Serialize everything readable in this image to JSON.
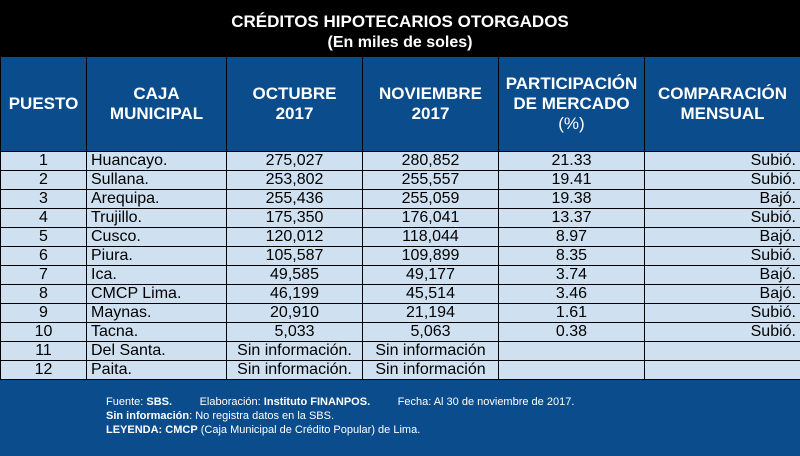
{
  "title": {
    "line1": "CRÉDITOS HIPOTECARIOS OTORGADOS",
    "line2": "(En miles de soles)"
  },
  "headers": {
    "puesto": "PUESTO",
    "caja_1": "CAJA",
    "caja_2": "MUNICIPAL",
    "oct_1": "OCTUBRE",
    "oct_2": "2017",
    "nov_1": "NOVIEMBRE",
    "nov_2": "2017",
    "part_1": "PARTICIPACIÓN",
    "part_2": "DE MERCADO",
    "part_3": "(%)",
    "comp_1": "COMPARACIÓN",
    "comp_2": "MENSUAL"
  },
  "rows": [
    {
      "puesto": "1",
      "caja": "Huancayo.",
      "oct": "275,027",
      "nov": "280,852",
      "part": "21.33",
      "comp": "Subió."
    },
    {
      "puesto": "2",
      "caja": "Sullana.",
      "oct": "253,802",
      "nov": "255,557",
      "part": "19.41",
      "comp": "Subió."
    },
    {
      "puesto": "3",
      "caja": "Arequipa.",
      "oct": "255,436",
      "nov": "255,059",
      "part": "19.38",
      "comp": "Bajó."
    },
    {
      "puesto": "4",
      "caja": "Trujillo.",
      "oct": "175,350",
      "nov": "176,041",
      "part": "13.37",
      "comp": "Subió."
    },
    {
      "puesto": "5",
      "caja": "Cusco.",
      "oct": "120,012",
      "nov": "118,044",
      "part": "8.97",
      "comp": "Bajó."
    },
    {
      "puesto": "6",
      "caja": "Piura.",
      "oct": "105,587",
      "nov": "109,899",
      "part": "8.35",
      "comp": "Subió."
    },
    {
      "puesto": "7",
      "caja": "Ica.",
      "oct": "49,585",
      "nov": "49,177",
      "part": "3.74",
      "comp": "Bajó."
    },
    {
      "puesto": "8",
      "caja": "CMCP Lima.",
      "oct": "46,199",
      "nov": "45,514",
      "part": "3.46",
      "comp": "Bajó."
    },
    {
      "puesto": "9",
      "caja": "Maynas.",
      "oct": "20,910",
      "nov": "21,194",
      "part": "1.61",
      "comp": "Subió."
    },
    {
      "puesto": "10",
      "caja": "Tacna.",
      "oct": "5,033",
      "nov": "5,063",
      "part": "0.38",
      "comp": "Subió."
    },
    {
      "puesto": "11",
      "caja": "Del Santa.",
      "oct": "Sin información.",
      "nov": "Sin información",
      "part": "",
      "comp": ""
    },
    {
      "puesto": "12",
      "caja": "Paita.",
      "oct": "Sin información.",
      "nov": "Sin información",
      "part": "",
      "comp": ""
    }
  ],
  "footer": {
    "fuente_label": "Fuente:",
    "fuente_value": "SBS.",
    "elab_label": "Elaboración:",
    "elab_value": "Instituto FINANPOS.",
    "fecha": "Fecha: Al 30 de noviembre de 2017.",
    "sininfo_label": "Sin información",
    "sininfo_text": ": No registra datos en la SBS.",
    "leyenda_label": "LEYENDA:",
    "leyenda_value": "CMCP",
    "leyenda_text": "(Caja Municipal de Crédito Popular) de Lima."
  },
  "colors": {
    "header_bg": "#0b4c8c",
    "row_bg": "#cfe1f1",
    "title_bg": "#000000"
  }
}
